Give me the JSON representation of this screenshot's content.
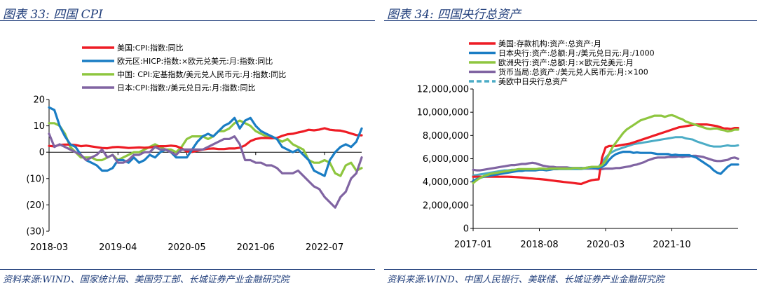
{
  "left": {
    "title": "图表 33:  四国 CPI",
    "source": "资料来源:WIND、国家统计局、美国劳工部、长城证券产业金融研究院"
  },
  "right": {
    "title": "图表 34:  四国央行总资产",
    "source": "资料来源:WIND、中国人民银行、美联储、长城证券产业金融研究院"
  },
  "chart_data": [
    {
      "type": "line",
      "ylim": [
        -30,
        20
      ],
      "yticks": [
        20,
        10,
        0,
        -10,
        -20,
        -30
      ],
      "ytick_labels": [
        "20",
        "10",
        "0",
        "(10)",
        "(20)",
        "(30)"
      ],
      "xlim": [
        0,
        59
      ],
      "xticks": [
        0,
        13,
        26,
        39,
        52
      ],
      "xtick_labels": [
        "2018-03",
        "2019-04",
        "2020-05",
        "2021-06",
        "2022-07"
      ],
      "colors": {
        "us": "#ee1c25",
        "eu": "#1a7dc4",
        "cn": "#8ec63f",
        "jp": "#8064a2",
        "neg": "#c00000"
      },
      "series": [
        {
          "key": "us",
          "name": "美国:CPI:指数:同比",
          "values": [
            2.4,
            2.2,
            2.8,
            2.9,
            2.9,
            2.7,
            2.3,
            2.5,
            2.2,
            1.9,
            1.6,
            1.5,
            1.9,
            2.0,
            1.8,
            1.6,
            1.7,
            1.8,
            1.7,
            1.8,
            2.1,
            2.3,
            2.3,
            2.5,
            2.3,
            1.5,
            0.3,
            0.1,
            0.6,
            1.0,
            1.3,
            1.4,
            1.2,
            1.2,
            1.4,
            1.4,
            1.7,
            2.6,
            4.2,
            5.0,
            5.4,
            5.4,
            5.3,
            5.4,
            6.2,
            6.8,
            7.0,
            7.5,
            7.9,
            8.5,
            8.3,
            8.6,
            9.1,
            8.5,
            8.3,
            8.2,
            7.7,
            7.1,
            6.5,
            6.4
          ]
        },
        {
          "key": "eu",
          "name": "欧元区:HICP:指数:×欧元兑美元:月:指数:同比",
          "values": [
            17,
            16,
            10,
            6,
            3,
            2,
            -1,
            -3,
            -4,
            -5,
            -7,
            -7,
            -6,
            -3,
            -3,
            -4,
            -2,
            -4,
            -3,
            -1,
            -2,
            0,
            1,
            0,
            -2,
            -2,
            -2,
            1,
            4,
            6,
            7,
            6,
            8,
            10,
            11,
            13,
            9,
            12,
            13,
            10,
            8,
            7,
            6,
            5,
            2,
            1,
            0,
            1,
            -1,
            -3,
            -7,
            -8,
            -9,
            -3,
            0,
            2,
            3,
            2,
            4,
            9
          ]
        },
        {
          "key": "cn",
          "name": "中国: CPI:定基指数/美元兑人民币元:月:指数:同比",
          "values": [
            11,
            11,
            10,
            7,
            2,
            0,
            -2,
            -2,
            -2,
            -3,
            -3,
            -2,
            -1,
            -3,
            -2,
            -1,
            0,
            0,
            1,
            2,
            3,
            2,
            1,
            1,
            0,
            2,
            5,
            6,
            6,
            6,
            5,
            6,
            8,
            8,
            9,
            11,
            12,
            11,
            10,
            8,
            7,
            6,
            6,
            5,
            4,
            5,
            3,
            2,
            1,
            -3,
            -4,
            -4,
            -3,
            -4,
            -8,
            -9,
            -5,
            -4,
            -7,
            -6
          ]
        },
        {
          "key": "jp",
          "name": "日本:CPI:指数:/美元兑日元:月:指数:同比",
          "values": [
            7,
            2,
            3,
            2,
            1,
            0,
            -1,
            -3,
            -2,
            -1,
            1,
            -2,
            -1,
            -4,
            -4,
            -3,
            -1,
            -1,
            0,
            0,
            2,
            1,
            1,
            0,
            -1,
            1,
            1,
            1,
            1,
            1,
            2,
            3,
            4,
            5,
            5,
            6,
            3,
            -3,
            -3,
            -4,
            -4,
            -5,
            -5,
            -6,
            -8,
            -8,
            -8,
            -7,
            -9,
            -11,
            -13,
            -14,
            -17,
            -19,
            -21,
            -17,
            -15,
            -10,
            -8,
            -2
          ]
        }
      ]
    },
    {
      "type": "line",
      "ylim": [
        0,
        12000000
      ],
      "yticks": [
        0,
        2000000,
        4000000,
        6000000,
        8000000,
        10000000,
        12000000
      ],
      "ytick_labels": [
        "0",
        "2,000,000",
        "4,000,000",
        "6,000,000",
        "8,000,000",
        "10,000,000",
        "12,000,000"
      ],
      "xlim": [
        0,
        76
      ],
      "xticks": [
        0,
        19,
        38,
        57
      ],
      "xtick_labels": [
        "2017-01",
        "2018-08",
        "2020-03",
        "2021-10"
      ],
      "colors": {
        "us": "#ee1c25",
        "jp": "#1a7dc4",
        "eu": "#8ec63f",
        "cn": "#8064a2",
        "total": "#4bacc6"
      },
      "series": [
        {
          "key": "us",
          "name": "美国:存款机构:资产:总资产:月",
          "values": [
            4450000,
            4450000,
            4450000,
            4450000,
            4450000,
            4450000,
            4450000,
            4450000,
            4450000,
            4450000,
            4450000,
            4440000,
            4420000,
            4400000,
            4380000,
            4350000,
            4320000,
            4300000,
            4270000,
            4250000,
            4220000,
            4190000,
            4150000,
            4110000,
            4070000,
            4040000,
            4000000,
            3970000,
            3940000,
            3900000,
            3860000,
            3830000,
            3950000,
            4060000,
            4150000,
            4200000,
            4220000,
            6100000,
            6970000,
            7090000,
            7090000,
            7100000,
            7150000,
            7200000,
            7250000,
            7300000,
            7400000,
            7500000,
            7600000,
            7700000,
            7800000,
            7900000,
            8000000,
            8100000,
            8200000,
            8300000,
            8400000,
            8500000,
            8600000,
            8700000,
            8750000,
            8800000,
            8850000,
            8900000,
            8950000,
            8950000,
            8950000,
            8950000,
            8900000,
            8850000,
            8800000,
            8700000,
            8600000,
            8600000,
            8550000,
            8650000,
            8650000
          ]
        },
        {
          "key": "jp",
          "name": "日本央行:资产:总额:月:/美元兑日元:月:/1000",
          "values": [
            4100000,
            4250000,
            4350000,
            4450000,
            4500000,
            4550000,
            4600000,
            4650000,
            4700000,
            4750000,
            4800000,
            4850000,
            4900000,
            4950000,
            4950000,
            5000000,
            5000000,
            5000000,
            5000000,
            5050000,
            5050000,
            5000000,
            5050000,
            5100000,
            5100000,
            5150000,
            5150000,
            5150000,
            5200000,
            5200000,
            5200000,
            5200000,
            5200000,
            5250000,
            5250000,
            5200000,
            5200000,
            5300000,
            5500000,
            5900000,
            6200000,
            6400000,
            6500000,
            6600000,
            6600000,
            6600000,
            6500000,
            6550000,
            6500000,
            6500000,
            6500000,
            6500000,
            6450000,
            6400000,
            6400000,
            6400000,
            6400000,
            6300000,
            6350000,
            6300000,
            6300000,
            6300000,
            6300000,
            6200000,
            6100000,
            5900000,
            5700000,
            5500000,
            5300000,
            5000000,
            4800000,
            4700000,
            5000000,
            5300000,
            5500000,
            5500000,
            5500000
          ]
        },
        {
          "key": "eu",
          "name": "欧洲央行:资产:总额:月:×欧元兑美元:月",
          "values": [
            3900000,
            4150000,
            4350000,
            4500000,
            4600000,
            4700000,
            4750000,
            4800000,
            4850000,
            4900000,
            4950000,
            5000000,
            5050000,
            5100000,
            5100000,
            5100000,
            5100000,
            5100000,
            5100000,
            5150000,
            5150000,
            5100000,
            5150000,
            5150000,
            5150000,
            5150000,
            5150000,
            5150000,
            5150000,
            5200000,
            5200000,
            5150000,
            5200000,
            5250000,
            5300000,
            5300000,
            5300000,
            5450000,
            5800000,
            6400000,
            7000000,
            7400000,
            7800000,
            8200000,
            8500000,
            8700000,
            8900000,
            9100000,
            9300000,
            9400000,
            9500000,
            9600000,
            9700000,
            9700000,
            9700000,
            9600000,
            9700000,
            9750000,
            9650000,
            9500000,
            9400000,
            9200000,
            9100000,
            9000000,
            8900000,
            8800000,
            8700000,
            8600000,
            8550000,
            8600000,
            8600000,
            8500000,
            8450000,
            8350000,
            8400000,
            8500000,
            8500000
          ]
        },
        {
          "key": "cn",
          "name": "货币当局:总资产:/美元兑人民币元:月:×100",
          "values": [
            5050000,
            5000000,
            5000000,
            5050000,
            5100000,
            5150000,
            5200000,
            5250000,
            5300000,
            5350000,
            5400000,
            5450000,
            5450000,
            5500000,
            5550000,
            5550000,
            5600000,
            5650000,
            5600000,
            5500000,
            5400000,
            5350000,
            5300000,
            5300000,
            5250000,
            5250000,
            5250000,
            5250000,
            5200000,
            5200000,
            5200000,
            5200000,
            5150000,
            5150000,
            5150000,
            5150000,
            5100000,
            5100000,
            5150000,
            5150000,
            5150000,
            5200000,
            5200000,
            5250000,
            5300000,
            5350000,
            5450000,
            5500000,
            5600000,
            5700000,
            5850000,
            5950000,
            6050000,
            6100000,
            6100000,
            6100000,
            6150000,
            6150000,
            6150000,
            6200000,
            6150000,
            6200000,
            6200000,
            6250000,
            6250000,
            6200000,
            6150000,
            6050000,
            5950000,
            5850000,
            5800000,
            5800000,
            5850000,
            5900000,
            6050000,
            6100000,
            6000000
          ]
        },
        {
          "key": "total",
          "name": "美欧中日央行总资产",
          "values": [
            4550000,
            4600000,
            4650000,
            4700000,
            4750000,
            4800000,
            4850000,
            4900000,
            4950000,
            5000000,
            5000000,
            5050000,
            5050000,
            5100000,
            5100000,
            5100000,
            5100000,
            5100000,
            5100000,
            5100000,
            5100000,
            5100000,
            5100000,
            5100000,
            5100000,
            5100000,
            5100000,
            5100000,
            5100000,
            5100000,
            5100000,
            5100000,
            5150000,
            5200000,
            5200000,
            5250000,
            5300000,
            5700000,
            6100000,
            6400000,
            6600000,
            6750000,
            6850000,
            6950000,
            7050000,
            7150000,
            7250000,
            7300000,
            7350000,
            7400000,
            7450000,
            7500000,
            7550000,
            7600000,
            7650000,
            7700000,
            7750000,
            7800000,
            7850000,
            7850000,
            7850000,
            7750000,
            7700000,
            7650000,
            7500000,
            7400000,
            7300000,
            7200000,
            7100000,
            7050000,
            7050000,
            7050000,
            7100000,
            7150000,
            7100000,
            7100000,
            7150000
          ]
        }
      ]
    }
  ]
}
